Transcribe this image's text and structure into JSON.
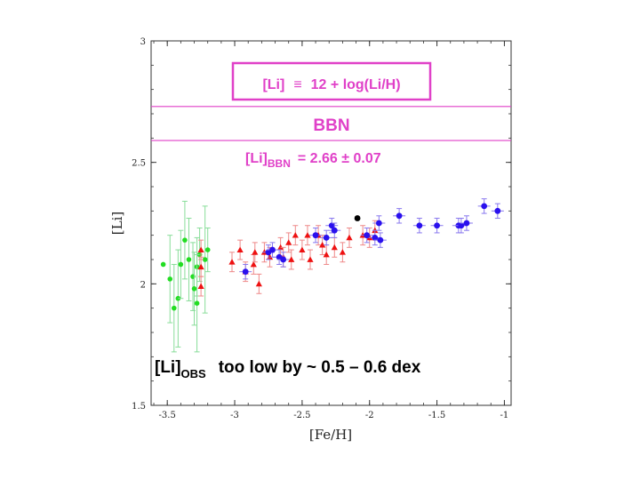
{
  "chart_data": {
    "type": "scatter",
    "title": "",
    "xlabel": "[Fe/H]",
    "ylabel": "[Li]",
    "xlim": [
      -3.62,
      -0.95
    ],
    "ylim": [
      1.5,
      3.0
    ],
    "xticks": [
      {
        "value": -3.5,
        "label": "-3.5"
      },
      {
        "value": -3.0,
        "label": "-3"
      },
      {
        "value": -2.5,
        "label": "-2.5"
      },
      {
        "value": -2.0,
        "label": "-2"
      },
      {
        "value": -1.5,
        "label": "-1.5"
      },
      {
        "value": -1.0,
        "label": "-1"
      }
    ],
    "yticks": [
      {
        "value": 1.5,
        "label": "1.5"
      },
      {
        "value": 2.0,
        "label": "2"
      },
      {
        "value": 2.5,
        "label": "2.5"
      },
      {
        "value": 3.0,
        "label": "3"
      }
    ],
    "grid": false,
    "bbn_band": {
      "low": 2.59,
      "high": 2.73,
      "color": "#e040c8"
    },
    "annotations": {
      "definition_prefix": "[Li]",
      "definition_eq": "≡",
      "definition_rhs": "12 + log(Li/H)",
      "bbn_label": "BBN",
      "bbn_value_base": "[Li]",
      "bbn_value_sub": "BBN",
      "bbn_value_rhs": "=  2.66 ± 0.07",
      "obs_base": "[Li]",
      "obs_sub": "OBS",
      "obs_rhs": "too  low  by  ~ 0.5 – 0.6 dex"
    },
    "series": [
      {
        "marker": "circle",
        "color": "#22dd22",
        "error_color": "#88dd99",
        "points": [
          {
            "x": -3.53,
            "y": 2.08,
            "err": 0.0
          },
          {
            "x": -3.48,
            "y": 2.02,
            "err": 0.18
          },
          {
            "x": -3.45,
            "y": 1.9,
            "err": 0.18
          },
          {
            "x": -3.42,
            "y": 1.94,
            "err": 0.2
          },
          {
            "x": -3.4,
            "y": 2.08,
            "err": 0.14
          },
          {
            "x": -3.37,
            "y": 2.18,
            "err": 0.16
          },
          {
            "x": -3.34,
            "y": 2.1,
            "err": 0.17
          },
          {
            "x": -3.31,
            "y": 2.03,
            "err": 0.14
          },
          {
            "x": -3.3,
            "y": 1.98,
            "err": 0.15
          },
          {
            "x": -3.28,
            "y": 2.07,
            "err": 0.12
          },
          {
            "x": -3.26,
            "y": 2.12,
            "err": 0.11
          },
          {
            "x": -3.28,
            "y": 1.92,
            "err": 0.2
          },
          {
            "x": -3.22,
            "y": 2.1,
            "err": 0.22
          },
          {
            "x": -3.2,
            "y": 2.14,
            "err": 0.09
          }
        ]
      },
      {
        "marker": "triangle",
        "color": "#ee1111",
        "error_color": "#ee8888",
        "points": [
          {
            "x": -3.25,
            "y": 2.14,
            "err": 0.04
          },
          {
            "x": -3.25,
            "y": 2.07,
            "err": 0.04
          },
          {
            "x": -3.25,
            "y": 1.99,
            "err": 0.04
          },
          {
            "x": -3.02,
            "y": 2.09,
            "err": 0.04
          },
          {
            "x": -2.96,
            "y": 2.14,
            "err": 0.04
          },
          {
            "x": -2.92,
            "y": 2.05,
            "err": 0.04
          },
          {
            "x": -2.86,
            "y": 2.08,
            "err": 0.04
          },
          {
            "x": -2.85,
            "y": 2.13,
            "err": 0.04
          },
          {
            "x": -2.82,
            "y": 2.0,
            "err": 0.04
          },
          {
            "x": -2.78,
            "y": 2.13,
            "err": 0.04
          },
          {
            "x": -2.74,
            "y": 2.11,
            "err": 0.04
          },
          {
            "x": -2.66,
            "y": 2.15,
            "err": 0.04
          },
          {
            "x": -2.64,
            "y": 2.11,
            "err": 0.04
          },
          {
            "x": -2.6,
            "y": 2.17,
            "err": 0.04
          },
          {
            "x": -2.58,
            "y": 2.1,
            "err": 0.04
          },
          {
            "x": -2.55,
            "y": 2.2,
            "err": 0.04
          },
          {
            "x": -2.5,
            "y": 2.14,
            "err": 0.04
          },
          {
            "x": -2.46,
            "y": 2.2,
            "err": 0.04
          },
          {
            "x": -2.44,
            "y": 2.1,
            "err": 0.04
          },
          {
            "x": -2.38,
            "y": 2.2,
            "err": 0.04
          },
          {
            "x": -2.35,
            "y": 2.16,
            "err": 0.04
          },
          {
            "x": -2.32,
            "y": 2.12,
            "err": 0.04
          },
          {
            "x": -2.26,
            "y": 2.15,
            "err": 0.04
          },
          {
            "x": -2.2,
            "y": 2.13,
            "err": 0.04
          },
          {
            "x": -2.15,
            "y": 2.19,
            "err": 0.04
          },
          {
            "x": -2.05,
            "y": 2.2,
            "err": 0.04
          },
          {
            "x": -2.0,
            "y": 2.19,
            "err": 0.04
          },
          {
            "x": -1.96,
            "y": 2.22,
            "err": 0.04
          }
        ]
      },
      {
        "marker": "circle",
        "color": "#2a10ee",
        "error_color": "#8878ee",
        "points": [
          {
            "x": -2.92,
            "y": 2.05,
            "err": 0.03
          },
          {
            "x": -2.75,
            "y": 2.13,
            "err": 0.03
          },
          {
            "x": -2.72,
            "y": 2.14,
            "err": 0.03
          },
          {
            "x": -2.67,
            "y": 2.11,
            "err": 0.03
          },
          {
            "x": -2.64,
            "y": 2.1,
            "err": 0.03
          },
          {
            "x": -2.4,
            "y": 2.2,
            "err": 0.03
          },
          {
            "x": -2.32,
            "y": 2.19,
            "err": 0.03
          },
          {
            "x": -2.28,
            "y": 2.24,
            "err": 0.03
          },
          {
            "x": -2.26,
            "y": 2.22,
            "err": 0.03
          },
          {
            "x": -2.02,
            "y": 2.2,
            "err": 0.03
          },
          {
            "x": -1.96,
            "y": 2.19,
            "err": 0.03
          },
          {
            "x": -1.93,
            "y": 2.25,
            "err": 0.03
          },
          {
            "x": -1.92,
            "y": 2.18,
            "err": 0.03
          },
          {
            "x": -1.78,
            "y": 2.28,
            "err": 0.03
          },
          {
            "x": -1.63,
            "y": 2.24,
            "err": 0.03
          },
          {
            "x": -1.5,
            "y": 2.24,
            "err": 0.03
          },
          {
            "x": -1.34,
            "y": 2.24,
            "err": 0.03
          },
          {
            "x": -1.32,
            "y": 2.24,
            "err": 0.03
          },
          {
            "x": -1.28,
            "y": 2.25,
            "err": 0.03
          },
          {
            "x": -1.15,
            "y": 2.32,
            "err": 0.03
          },
          {
            "x": -1.05,
            "y": 2.3,
            "err": 0.03
          }
        ]
      },
      {
        "marker": "circle",
        "color": "#000000",
        "error_color": "#000000",
        "points": [
          {
            "x": -2.09,
            "y": 2.27,
            "err": 0.0
          }
        ]
      }
    ]
  }
}
